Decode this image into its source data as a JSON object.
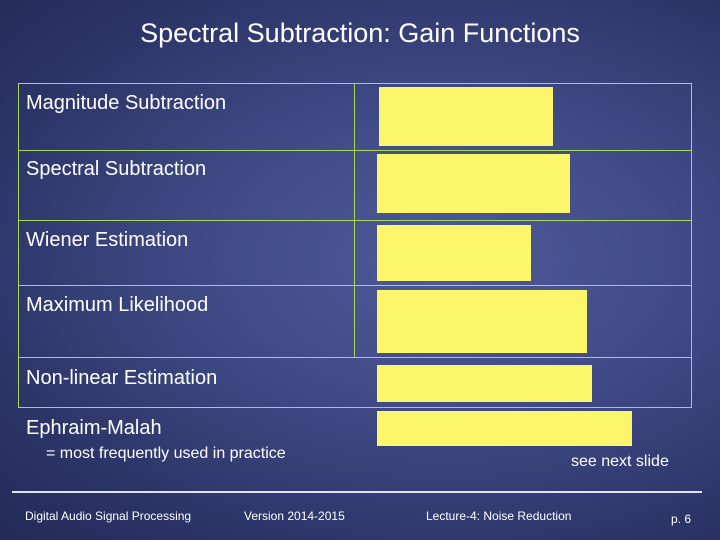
{
  "title": "Spectral Subtraction: Gain Functions",
  "rows": [
    {
      "label": "Magnitude Subtraction"
    },
    {
      "label": "Spectral Subtraction"
    },
    {
      "label": "Wiener Estimation"
    },
    {
      "label": "Maximum Likelihood"
    },
    {
      "label": "Non-linear Estimation"
    },
    {
      "label": "Ephraim-Malah",
      "note": "= most frequently used in practice",
      "right_note": "see next slide"
    }
  ],
  "footer": {
    "course": "Digital Audio Signal Processing",
    "version": "Version 2014-2015",
    "lecture": "Lecture-4: Noise Reduction",
    "page": "p. 6"
  },
  "colors": {
    "background": "#3f4a85",
    "grid_lines": "#a8d85a",
    "formula_box": "#fbf66a",
    "text": "#ffffff"
  }
}
